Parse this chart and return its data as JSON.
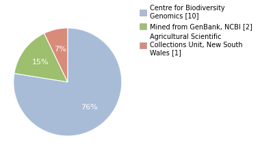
{
  "slices": [
    76,
    15,
    7
  ],
  "pct_labels": [
    "76%",
    "15%",
    "7%"
  ],
  "colors": [
    "#a8bcd8",
    "#9dbf6e",
    "#d98b7a"
  ],
  "legend_labels": [
    "Centre for Biodiversity\nGenomics [10]",
    "Mined from GenBank, NCBI [2]",
    "Agricultural Scientific\nCollections Unit, New South\nWales [1]"
  ],
  "startangle": 90,
  "background_color": "#ffffff",
  "text_color": "#ffffff",
  "label_fontsize": 8,
  "legend_fontsize": 7
}
